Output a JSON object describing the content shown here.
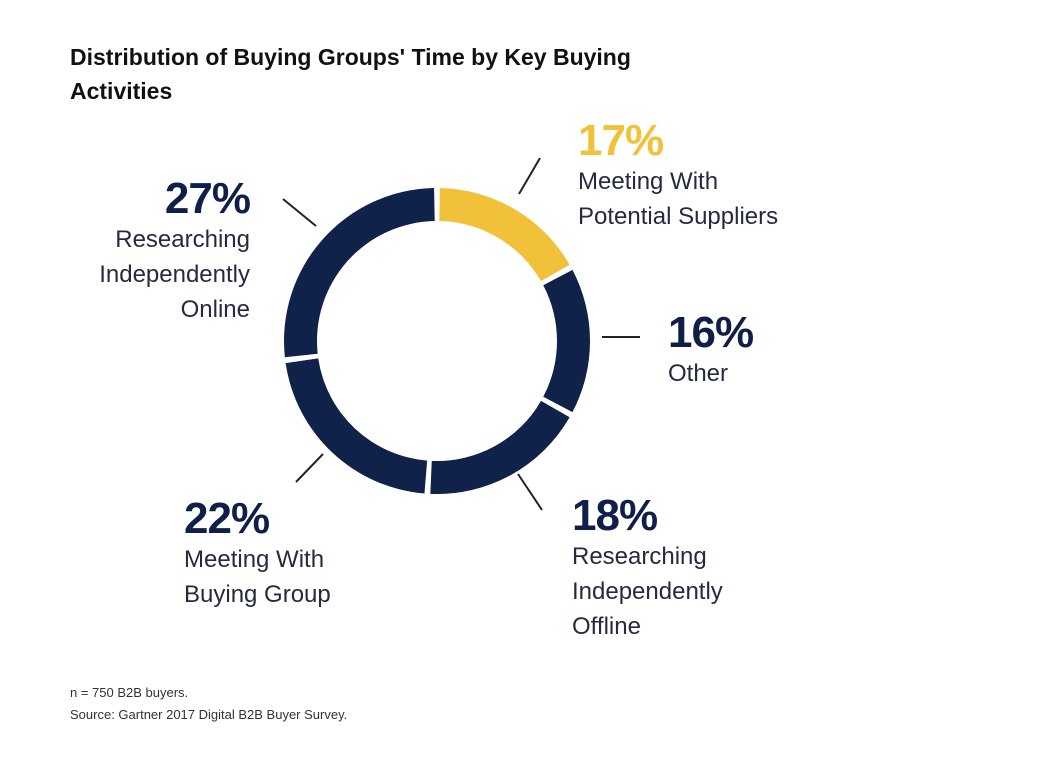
{
  "title": "Distribution of Buying Groups' Time by Key Buying Activities",
  "chart_data": {
    "type": "pie",
    "variant": "donut",
    "title": "Distribution of Buying Groups' Time by Key Buying Activities",
    "unit": "%",
    "slices": [
      {
        "key": "suppliers",
        "label_lines": [
          "Meeting With",
          "Potential Suppliers"
        ],
        "pct_text": "17%",
        "value": 17,
        "color": "#f2c13a"
      },
      {
        "key": "other",
        "label_lines": [
          "Other"
        ],
        "pct_text": "16%",
        "value": 16,
        "color": "#10214a"
      },
      {
        "key": "offline",
        "label_lines": [
          "Researching",
          "Independently",
          "Offline"
        ],
        "pct_text": "18%",
        "value": 18,
        "color": "#10214a"
      },
      {
        "key": "group",
        "label_lines": [
          "Meeting With",
          "Buying Group"
        ],
        "pct_text": "22%",
        "value": 22,
        "color": "#10214a"
      },
      {
        "key": "online",
        "label_lines": [
          "Researching",
          "Independently",
          "Online"
        ],
        "pct_text": "27%",
        "value": 27,
        "color": "#10214a"
      }
    ]
  },
  "footer": {
    "sample": "n = 750 B2B buyers.",
    "source": "Source: Gartner 2017 Digital B2B Buyer Survey."
  }
}
